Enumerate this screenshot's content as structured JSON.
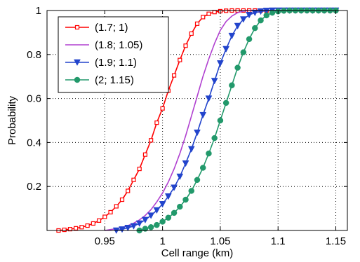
{
  "chart_data": {
    "type": "line",
    "title": "",
    "xlabel": "Cell range (km)",
    "ylabel": "Probability",
    "xlim": [
      0.9,
      1.16
    ],
    "ylim": [
      0,
      1
    ],
    "xticks": [
      0.95,
      1,
      1.05,
      1.1,
      1.15
    ],
    "xtick_labels": [
      "0.95",
      "1",
      "1.05",
      "1.1",
      "1.15"
    ],
    "yticks": [
      0.2,
      0.4,
      0.6,
      0.8,
      1
    ],
    "ytick_labels": [
      "0.2",
      "0.4",
      "0.6",
      "0.8",
      "1"
    ],
    "grid": true,
    "legend_position": "top-left",
    "x": [
      0.91,
      0.915,
      0.92,
      0.925,
      0.93,
      0.935,
      0.94,
      0.945,
      0.95,
      0.955,
      0.96,
      0.965,
      0.97,
      0.975,
      0.98,
      0.985,
      0.99,
      0.995,
      1.0,
      1.005,
      1.01,
      1.015,
      1.02,
      1.025,
      1.03,
      1.035,
      1.04,
      1.045,
      1.05,
      1.055,
      1.06,
      1.065,
      1.07,
      1.075,
      1.08,
      1.085,
      1.09,
      1.095,
      1.1,
      1.105,
      1.11,
      1.115,
      1.12,
      1.125,
      1.13,
      1.135,
      1.14,
      1.145,
      1.15
    ],
    "series": [
      {
        "name": "(1.7; 1)",
        "color": "#ff0000",
        "marker": "square",
        "values": [
          0.0,
          0.003,
          0.006,
          0.01,
          0.015,
          0.022,
          0.032,
          0.045,
          0.062,
          0.083,
          0.11,
          0.14,
          0.18,
          0.23,
          0.28,
          0.345,
          0.41,
          0.49,
          0.555,
          0.635,
          0.705,
          0.775,
          0.84,
          0.895,
          0.94,
          0.97,
          0.985,
          0.993,
          0.997,
          0.999,
          1.0,
          1.0,
          1.0,
          1.0,
          1.0,
          1.0,
          1.0,
          1.0,
          1.0,
          1.0,
          1.0,
          1.0,
          1.0,
          1.0,
          1.0,
          1.0,
          1.0,
          1.0,
          1.0
        ]
      },
      {
        "name": "(1.8; 1.05)",
        "color": "#b040d0",
        "marker": "none",
        "values": [
          0.0,
          0.0,
          0.0,
          0.0,
          0.0,
          0.0,
          0.0,
          0.0,
          0.0,
          0.004,
          0.008,
          0.014,
          0.022,
          0.033,
          0.048,
          0.068,
          0.095,
          0.13,
          0.17,
          0.22,
          0.28,
          0.35,
          0.43,
          0.52,
          0.61,
          0.7,
          0.78,
          0.85,
          0.91,
          0.95,
          0.975,
          0.99,
          0.997,
          1.0,
          1.0,
          1.0,
          1.0,
          1.0,
          1.0,
          1.0,
          1.0,
          1.0,
          1.0,
          1.0,
          1.0,
          1.0,
          1.0,
          1.0,
          1.0
        ]
      },
      {
        "name": "(1.9; 1.1)",
        "color": "#2244cc",
        "marker": "triangle-down",
        "values": [
          0.0,
          0.0,
          0.0,
          0.0,
          0.0,
          0.0,
          0.0,
          0.0,
          0.0,
          0.0,
          0.0,
          0.005,
          0.012,
          0.02,
          0.032,
          0.048,
          0.068,
          0.092,
          0.12,
          0.155,
          0.195,
          0.245,
          0.305,
          0.37,
          0.445,
          0.525,
          0.6,
          0.68,
          0.76,
          0.825,
          0.885,
          0.93,
          0.96,
          0.98,
          0.99,
          0.996,
          0.999,
          1.0,
          1.0,
          1.0,
          1.0,
          1.0,
          1.0,
          1.0,
          1.0,
          1.0,
          1.0,
          1.0,
          1.0
        ]
      },
      {
        "name": "(2; 1.15)",
        "color": "#22996b",
        "marker": "circle",
        "values": [
          0.0,
          0.0,
          0.0,
          0.0,
          0.0,
          0.0,
          0.0,
          0.0,
          0.0,
          0.0,
          0.0,
          0.0,
          0.0,
          0.0,
          0.0,
          0.008,
          0.015,
          0.025,
          0.04,
          0.058,
          0.08,
          0.108,
          0.14,
          0.18,
          0.23,
          0.285,
          0.35,
          0.42,
          0.5,
          0.58,
          0.66,
          0.74,
          0.81,
          0.87,
          0.92,
          0.955,
          0.978,
          0.99,
          0.996,
          0.999,
          1.0,
          1.0,
          1.0,
          1.0,
          1.0,
          1.0,
          1.0,
          1.0,
          1.0
        ]
      }
    ]
  }
}
